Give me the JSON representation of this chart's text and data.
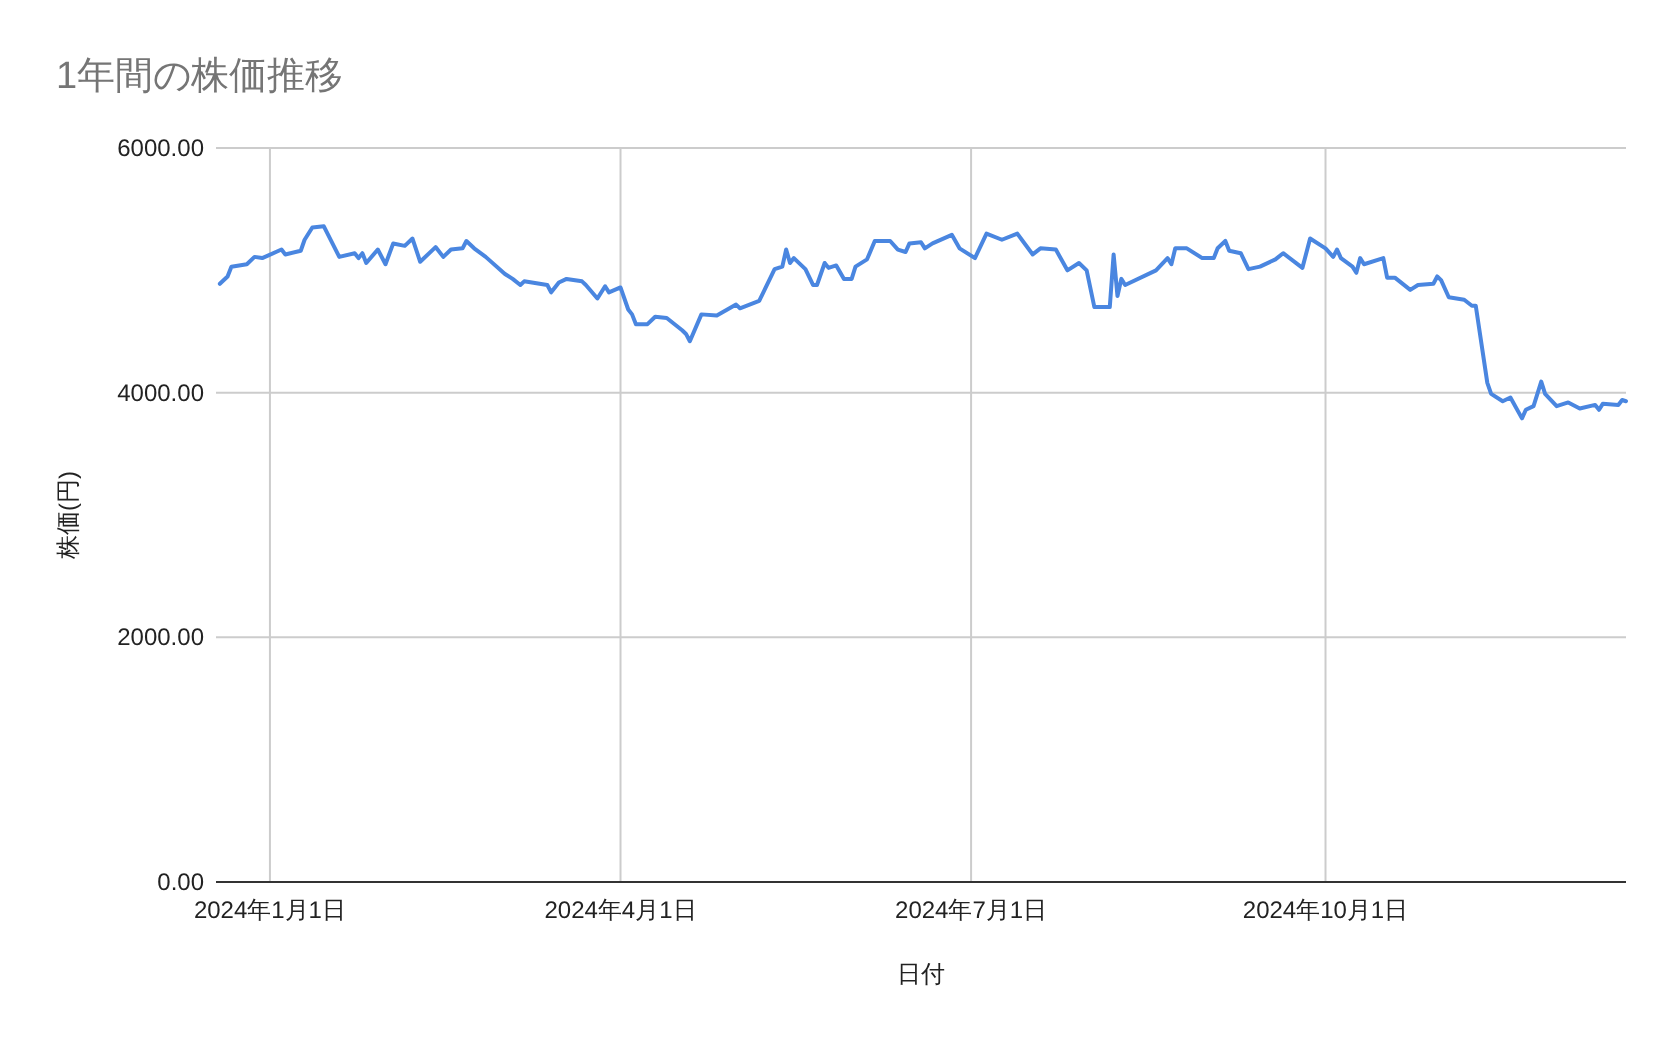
{
  "chart_data": {
    "type": "line",
    "title": "1年間の株価推移",
    "xlabel": "日付",
    "ylabel": "株価(円)",
    "xlim": [
      "2023-12-18",
      "2024-12-18"
    ],
    "xticks": [
      {
        "value": "2024-01-01",
        "label": "2024年1月1日"
      },
      {
        "value": "2024-04-01",
        "label": "2024年4月1日"
      },
      {
        "value": "2024-07-01",
        "label": "2024年7月1日"
      },
      {
        "value": "2024-10-01",
        "label": "2024年10月1日"
      }
    ],
    "ylim": [
      0,
      6000
    ],
    "yticks": [
      {
        "value": 0,
        "label": "0.00"
      },
      {
        "value": 2000,
        "label": "2000.00"
      },
      {
        "value": 4000,
        "label": "4000.00"
      },
      {
        "value": 6000,
        "label": "6000.00"
      }
    ],
    "grid": true,
    "marker": "none",
    "line_style": "solid",
    "series": [
      {
        "color": "#4a86e0",
        "x": [
          "2023-12-19",
          "2023-12-21",
          "2023-12-22",
          "2023-12-26",
          "2023-12-28",
          "2023-12-30",
          "2024-01-04",
          "2024-01-05",
          "2024-01-09",
          "2024-01-10",
          "2024-01-12",
          "2024-01-15",
          "2024-01-19",
          "2024-01-23",
          "2024-01-24",
          "2024-01-25",
          "2024-01-26",
          "2024-01-29",
          "2024-01-31",
          "2024-02-02",
          "2024-02-05",
          "2024-02-07",
          "2024-02-09",
          "2024-02-13",
          "2024-02-15",
          "2024-02-17",
          "2024-02-20",
          "2024-02-21",
          "2024-02-23",
          "2024-02-26",
          "2024-03-02",
          "2024-03-04",
          "2024-03-06",
          "2024-03-07",
          "2024-03-13",
          "2024-03-14",
          "2024-03-16",
          "2024-03-18",
          "2024-03-22",
          "2024-03-23",
          "2024-03-26",
          "2024-03-28",
          "2024-03-29",
          "2024-04-01",
          "2024-04-03",
          "2024-04-04",
          "2024-04-05",
          "2024-04-08",
          "2024-04-10",
          "2024-04-13",
          "2024-04-17",
          "2024-04-18",
          "2024-04-19",
          "2024-04-22",
          "2024-04-26",
          "2024-05-01",
          "2024-05-02",
          "2024-05-07",
          "2024-05-11",
          "2024-05-13",
          "2024-05-14",
          "2024-05-15",
          "2024-05-16",
          "2024-05-19",
          "2024-05-21",
          "2024-05-22",
          "2024-05-24",
          "2024-05-25",
          "2024-05-27",
          "2024-05-29",
          "2024-05-31",
          "2024-06-01",
          "2024-06-04",
          "2024-06-06",
          "2024-06-10",
          "2024-06-12",
          "2024-06-14",
          "2024-06-15",
          "2024-06-18",
          "2024-06-19",
          "2024-06-21",
          "2024-06-26",
          "2024-06-28",
          "2024-07-02",
          "2024-07-05",
          "2024-07-09",
          "2024-07-13",
          "2024-07-17",
          "2024-07-19",
          "2024-07-23",
          "2024-07-26",
          "2024-07-29",
          "2024-07-31",
          "2024-08-02",
          "2024-08-06",
          "2024-08-07",
          "2024-08-08",
          "2024-08-09",
          "2024-08-10",
          "2024-08-18",
          "2024-08-21",
          "2024-08-22",
          "2024-08-23",
          "2024-08-26",
          "2024-08-30",
          "2024-09-02",
          "2024-09-03",
          "2024-09-05",
          "2024-09-06",
          "2024-09-09",
          "2024-09-11",
          "2024-09-14",
          "2024-09-18",
          "2024-09-20",
          "2024-09-25",
          "2024-09-27",
          "2024-10-01",
          "2024-10-03",
          "2024-10-04",
          "2024-10-05",
          "2024-10-08",
          "2024-10-09",
          "2024-10-10",
          "2024-10-11",
          "2024-10-16",
          "2024-10-17",
          "2024-10-19",
          "2024-10-23",
          "2024-10-25",
          "2024-10-29",
          "2024-10-30",
          "2024-10-31",
          "2024-11-02",
          "2024-11-06",
          "2024-11-08",
          "2024-11-09",
          "2024-11-12",
          "2024-11-13",
          "2024-11-16",
          "2024-11-18",
          "2024-11-21",
          "2024-11-22",
          "2024-11-24",
          "2024-11-26",
          "2024-11-27",
          "2024-11-30",
          "2024-12-03",
          "2024-12-06",
          "2024-12-10",
          "2024-12-11",
          "2024-12-12",
          "2024-12-16",
          "2024-12-17",
          "2024-12-18"
        ],
        "values": [
          4890,
          4950,
          5030,
          5050,
          5110,
          5100,
          5170,
          5130,
          5160,
          5250,
          5350,
          5360,
          5110,
          5140,
          5100,
          5140,
          5060,
          5170,
          5050,
          5220,
          5200,
          5260,
          5070,
          5190,
          5110,
          5170,
          5180,
          5240,
          5180,
          5110,
          4970,
          4930,
          4880,
          4910,
          4880,
          4820,
          4900,
          4930,
          4910,
          4880,
          4770,
          4870,
          4820,
          4860,
          4680,
          4640,
          4560,
          4560,
          4620,
          4610,
          4510,
          4480,
          4420,
          4640,
          4630,
          4720,
          4690,
          4750,
          5010,
          5030,
          5170,
          5060,
          5100,
          5010,
          4880,
          4880,
          5060,
          5020,
          5040,
          4930,
          4930,
          5030,
          5090,
          5240,
          5240,
          5170,
          5150,
          5220,
          5230,
          5180,
          5220,
          5290,
          5180,
          5100,
          5300,
          5250,
          5300,
          5130,
          5180,
          5170,
          5000,
          5060,
          5000,
          4700,
          4700,
          5130,
          4790,
          4930,
          4880,
          5000,
          5100,
          5050,
          5180,
          5180,
          5100,
          5100,
          5180,
          5240,
          5160,
          5140,
          5010,
          5030,
          5090,
          5140,
          5020,
          5260,
          5180,
          5110,
          5170,
          5100,
          5030,
          4980,
          5100,
          5050,
          5100,
          4940,
          4940,
          4840,
          4880,
          4890,
          4950,
          4920,
          4780,
          4760,
          4710,
          4710,
          4080,
          3990,
          3930,
          3960,
          3790,
          3860,
          3890,
          4090,
          3990,
          3890,
          3920,
          3870,
          3900,
          3860,
          3910,
          3900,
          3940,
          3930
        ]
      }
    ]
  }
}
